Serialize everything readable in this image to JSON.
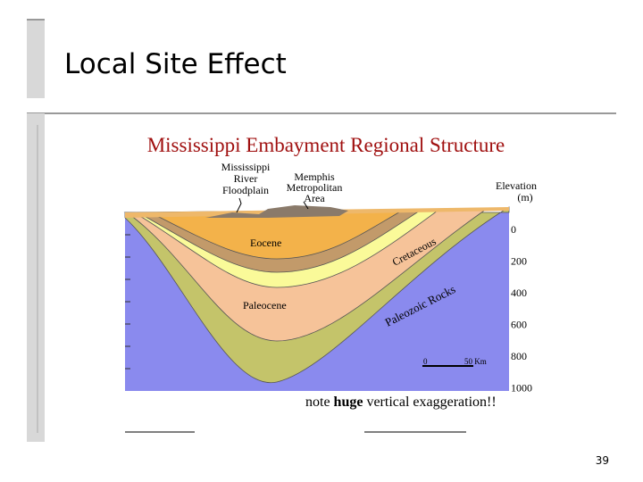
{
  "slide": {
    "title": "Local Site Effect",
    "page_number": "39"
  },
  "figure": {
    "title": "Mississippi Embayment Regional Structure",
    "labels": {
      "floodplain": [
        "Mississippi",
        "River",
        "Floodplain"
      ],
      "metro": [
        "Memphis",
        "Metropolitan",
        "Area"
      ],
      "elevation": [
        "Elevation",
        "(m)"
      ],
      "eocene": "Eocene",
      "cretaceous": "Cretaceous",
      "paleocene": "Paleocene",
      "paleozoic": "Paleozoic Rocks"
    },
    "elevation_ticks": [
      "0",
      "200",
      "400",
      "600",
      "800",
      "1000"
    ],
    "scale": [
      "0",
      "50 Km"
    ],
    "note": [
      "note ",
      "huge",
      " vertical exaggeration!!"
    ]
  }
}
